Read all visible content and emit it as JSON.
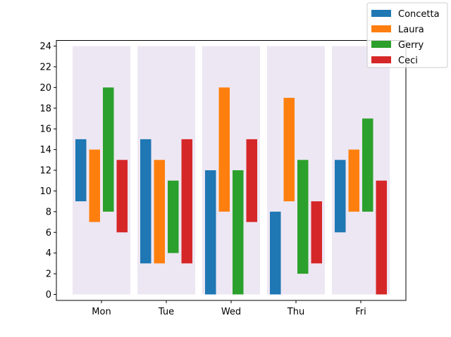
{
  "chart_data": {
    "type": "bar",
    "subtype": "floating-range",
    "categories": [
      "Mon",
      "Tue",
      "Wed",
      "Thu",
      "Fri"
    ],
    "ylim": [
      0,
      24
    ],
    "yticks": [
      "0",
      "2",
      "4",
      "6",
      "8",
      "10",
      "12",
      "14",
      "16",
      "18",
      "20",
      "22",
      "24"
    ],
    "background_range": [
      0,
      24
    ],
    "background_color": "#ede7f3",
    "grid": false,
    "legend_position": "top-right",
    "series": [
      {
        "name": "Concetta",
        "color": "#1f77b4",
        "ranges": [
          [
            9,
            15
          ],
          [
            3,
            15
          ],
          [
            0,
            12
          ],
          [
            0,
            8
          ],
          [
            6,
            13
          ]
        ]
      },
      {
        "name": "Laura",
        "color": "#ff7f0e",
        "ranges": [
          [
            7,
            14
          ],
          [
            3,
            13
          ],
          [
            8,
            20
          ],
          [
            9,
            19
          ],
          [
            8,
            14
          ]
        ]
      },
      {
        "name": "Gerry",
        "color": "#2ca02c",
        "ranges": [
          [
            8,
            20
          ],
          [
            4,
            11
          ],
          [
            0,
            12
          ],
          [
            2,
            13
          ],
          [
            8,
            17
          ]
        ]
      },
      {
        "name": "Ceci",
        "color": "#d62728",
        "ranges": [
          [
            6,
            13
          ],
          [
            3,
            15
          ],
          [
            7,
            15
          ],
          [
            3,
            9
          ],
          [
            0,
            11
          ]
        ]
      }
    ]
  }
}
